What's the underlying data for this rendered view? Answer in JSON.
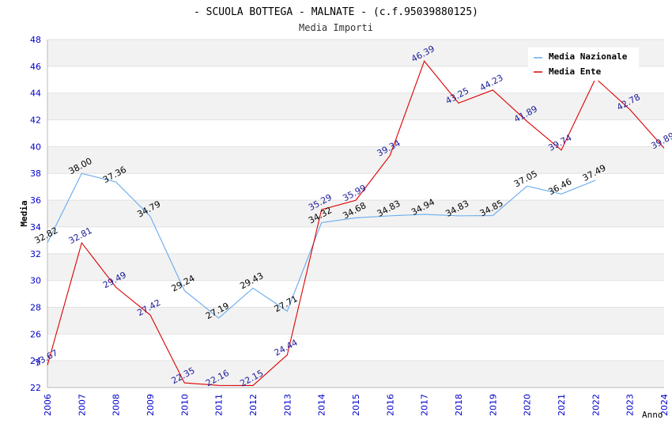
{
  "chart_data": {
    "type": "line",
    "title": "- SCUOLA BOTTEGA - MALNATE - (c.f.95039880125)",
    "subtitle": "Media Importi",
    "xlabel": "Anno",
    "ylabel": "Media",
    "ylim": [
      22,
      48
    ],
    "yticks": [
      "22",
      "24",
      "26",
      "28",
      "30",
      "32",
      "34",
      "36",
      "38",
      "40",
      "42",
      "44",
      "46",
      "48"
    ],
    "categories": [
      "2006",
      "2007",
      "2008",
      "2009",
      "2010",
      "2011",
      "2012",
      "2013",
      "2014",
      "2015",
      "2016",
      "2017",
      "2018",
      "2019",
      "2020",
      "2021",
      "2022",
      "2023",
      "2024"
    ],
    "legend_position": "top-right",
    "grid": true,
    "series": [
      {
        "name": "Media Nazionale",
        "color": "#66aaee",
        "label_color": "#000000",
        "values": [
          32.82,
          38.0,
          37.36,
          34.79,
          29.24,
          27.19,
          29.43,
          27.71,
          34.32,
          34.68,
          34.83,
          34.94,
          34.83,
          34.85,
          37.05,
          36.46,
          37.49,
          null,
          null
        ],
        "labels": [
          "32.82",
          "38.00",
          "37.36",
          "34.79",
          "29.24",
          "27.19",
          "29.43",
          "27.71",
          "34.32",
          "34.68",
          "34.83",
          "34.94",
          "34.83",
          "34.85",
          "37.05",
          "36.46",
          "37.49",
          null,
          null
        ]
      },
      {
        "name": "Media Ente",
        "color": "#dd0000",
        "label_color": "#1a1a99",
        "values": [
          23.67,
          32.81,
          29.49,
          27.42,
          22.35,
          22.16,
          22.15,
          24.44,
          35.29,
          35.99,
          39.34,
          46.39,
          43.25,
          44.23,
          41.89,
          39.74,
          45.1,
          42.78,
          39.89
        ],
        "labels": [
          "23.67",
          "32.81",
          "29.49",
          "27.42",
          "22.35",
          "22.16",
          "22.15",
          "24.44",
          "35.29",
          "35.99",
          "39.34",
          "46.39",
          "43.25",
          "44.23",
          "41.89",
          "39.74",
          null,
          "42.78",
          "39.89"
        ]
      }
    ]
  }
}
